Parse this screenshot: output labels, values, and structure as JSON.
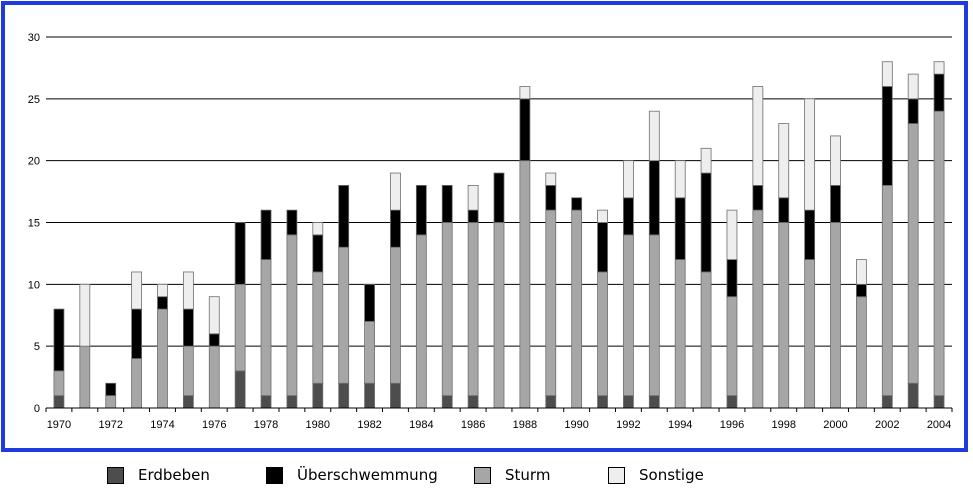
{
  "chart_data": {
    "type": "bar",
    "stacked": true,
    "categories": [
      "1970",
      "1971",
      "1972",
      "1973",
      "1974",
      "1975",
      "1976",
      "1977",
      "1978",
      "1979",
      "1980",
      "1981",
      "1982",
      "1983",
      "1984",
      "1985",
      "1986",
      "1987",
      "1988",
      "1989",
      "1990",
      "1991",
      "1992",
      "1993",
      "1994",
      "1995",
      "1996",
      "1997",
      "1998",
      "1999",
      "2000",
      "2001",
      "2002",
      "2003",
      "2004"
    ],
    "x_tick_labels": [
      "1970",
      "1972",
      "1974",
      "1976",
      "1978",
      "1980",
      "1982",
      "1984",
      "1986",
      "1988",
      "1990",
      "1992",
      "1994",
      "1996",
      "1998",
      "2000",
      "2002",
      "2004"
    ],
    "y_ticks": [
      0,
      5,
      10,
      15,
      20,
      25,
      30
    ],
    "ylim": [
      0,
      30
    ],
    "grid": "horizontal",
    "legend_position": "bottom",
    "series": [
      {
        "name": "Erdbeben",
        "color": "#4d4d4d",
        "values": [
          1,
          0,
          0,
          0,
          0,
          1,
          0,
          3,
          1,
          1,
          2,
          2,
          2,
          2,
          0,
          1,
          1,
          0,
          0,
          1,
          0,
          1,
          1,
          1,
          0,
          0,
          1,
          0,
          0,
          0,
          0,
          0,
          1,
          2,
          1
        ]
      },
      {
        "name": "Sturm",
        "color": "#a6a6a6",
        "values": [
          2,
          5,
          1,
          4,
          8,
          4,
          5,
          7,
          11,
          13,
          9,
          11,
          5,
          11,
          14,
          14,
          14,
          15,
          20,
          15,
          16,
          10,
          13,
          13,
          12,
          11,
          8,
          16,
          15,
          12,
          15,
          9,
          17,
          21,
          23
        ]
      },
      {
        "name": "Überschwemmung",
        "color": "#000000",
        "values": [
          5,
          0,
          1,
          4,
          1,
          3,
          1,
          5,
          4,
          2,
          3,
          5,
          3,
          3,
          4,
          3,
          1,
          4,
          5,
          2,
          1,
          4,
          3,
          6,
          5,
          8,
          3,
          2,
          2,
          4,
          3,
          1,
          8,
          2,
          3
        ]
      },
      {
        "name": "Sonstige",
        "color": "#eeeeee",
        "values": [
          0,
          5,
          0,
          3,
          1,
          3,
          3,
          0,
          0,
          0,
          1,
          0,
          0,
          3,
          0,
          0,
          2,
          0,
          1,
          1,
          0,
          1,
          3,
          4,
          3,
          2,
          4,
          8,
          6,
          9,
          4,
          2,
          2,
          2,
          1
        ]
      }
    ]
  },
  "legend": [
    {
      "label": "Erdbeben",
      "color": "#4d4d4d"
    },
    {
      "label": "Überschwemmung",
      "color": "#000000"
    },
    {
      "label": "Sturm",
      "color": "#a6a6a6"
    },
    {
      "label": "Sonstige",
      "color": "#eeeeee"
    }
  ],
  "colors": {
    "frame_border": "#1e3be0",
    "gridline": "#000000",
    "bar_outline": "#6e6e6e"
  }
}
